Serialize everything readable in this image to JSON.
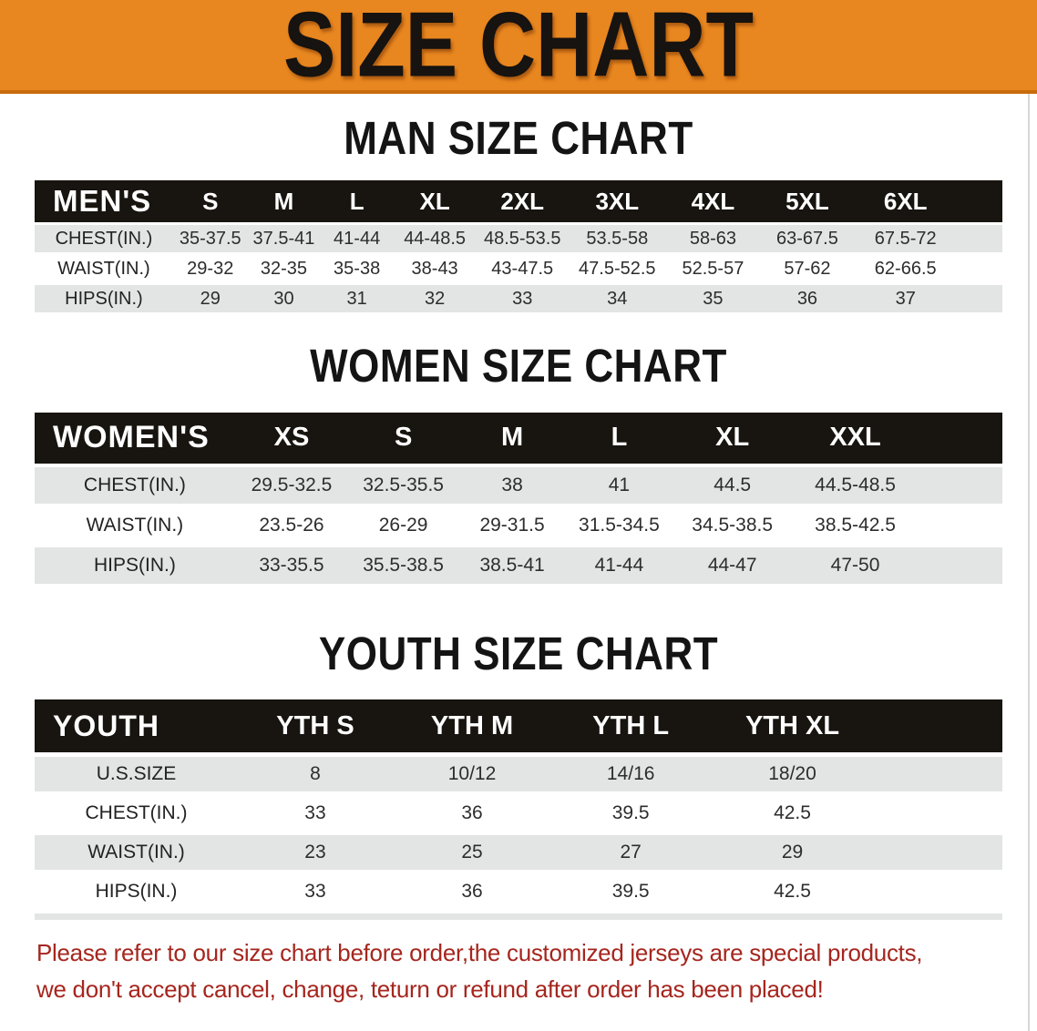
{
  "banner": {
    "title": "SIZE CHART"
  },
  "sections": [
    {
      "heading": "MAN SIZE CHART",
      "table": {
        "header_label": "MEN'S",
        "columns": [
          "S",
          "M",
          "L",
          "XL",
          "2XL",
          "3XL",
          "4XL",
          "5XL",
          "6XL"
        ],
        "rows": [
          {
            "label": "CHEST(IN.)",
            "values": [
              "35-37.5",
              "37.5-41",
              "41-44",
              "44-48.5",
              "48.5-53.5",
              "53.5-58",
              "58-63",
              "63-67.5",
              "67.5-72"
            ]
          },
          {
            "label": "WAIST(IN.)",
            "values": [
              "29-32",
              "32-35",
              "35-38",
              "38-43",
              "43-47.5",
              "47.5-52.5",
              "52.5-57",
              "57-62",
              "62-66.5"
            ]
          },
          {
            "label": "HIPS(IN.)",
            "values": [
              "29",
              "30",
              "31",
              "32",
              "33",
              "34",
              "35",
              "36",
              "37"
            ]
          }
        ]
      }
    },
    {
      "heading": "WOMEN SIZE CHART",
      "table": {
        "header_label": "WOMEN'S",
        "columns": [
          "XS",
          "S",
          "M",
          "L",
          "XL",
          "XXL"
        ],
        "rows": [
          {
            "label": "CHEST(IN.)",
            "values": [
              "29.5-32.5",
              "32.5-35.5",
              "38",
              "41",
              "44.5",
              "44.5-48.5"
            ]
          },
          {
            "label": "WAIST(IN.)",
            "values": [
              "23.5-26",
              "26-29",
              "29-31.5",
              "31.5-34.5",
              "34.5-38.5",
              "38.5-42.5"
            ]
          },
          {
            "label": "HIPS(IN.)",
            "values": [
              "33-35.5",
              "35.5-38.5",
              "38.5-41",
              "41-44",
              "44-47",
              "47-50"
            ]
          }
        ]
      }
    },
    {
      "heading": "YOUTH SIZE CHART",
      "table": {
        "header_label": "YOUTH",
        "columns": [
          "YTH S",
          "YTH M",
          "YTH L",
          "YTH XL"
        ],
        "rows": [
          {
            "label": "U.S.SIZE",
            "values": [
              "8",
              "10/12",
              "14/16",
              "18/20"
            ]
          },
          {
            "label": "CHEST(IN.)",
            "values": [
              "33",
              "36",
              "39.5",
              "42.5"
            ]
          },
          {
            "label": "WAIST(IN.)",
            "values": [
              "23",
              "25",
              "27",
              "29"
            ]
          },
          {
            "label": "HIPS(IN.)",
            "values": [
              "33",
              "36",
              "39.5",
              "42.5"
            ]
          }
        ]
      }
    }
  ],
  "footer_note": {
    "lines": [
      "Please refer to our size chart before order,the customized jerseys are special products,",
      "we don't accept cancel, change, teturn or refund after order has been placed!"
    ]
  },
  "colors": {
    "banner_bg": "#e8861f",
    "banner_border": "#c86c0e",
    "header_bar": "#18140f",
    "row_stripe": "#e3e5e5",
    "footer_text": "#a5261e"
  }
}
